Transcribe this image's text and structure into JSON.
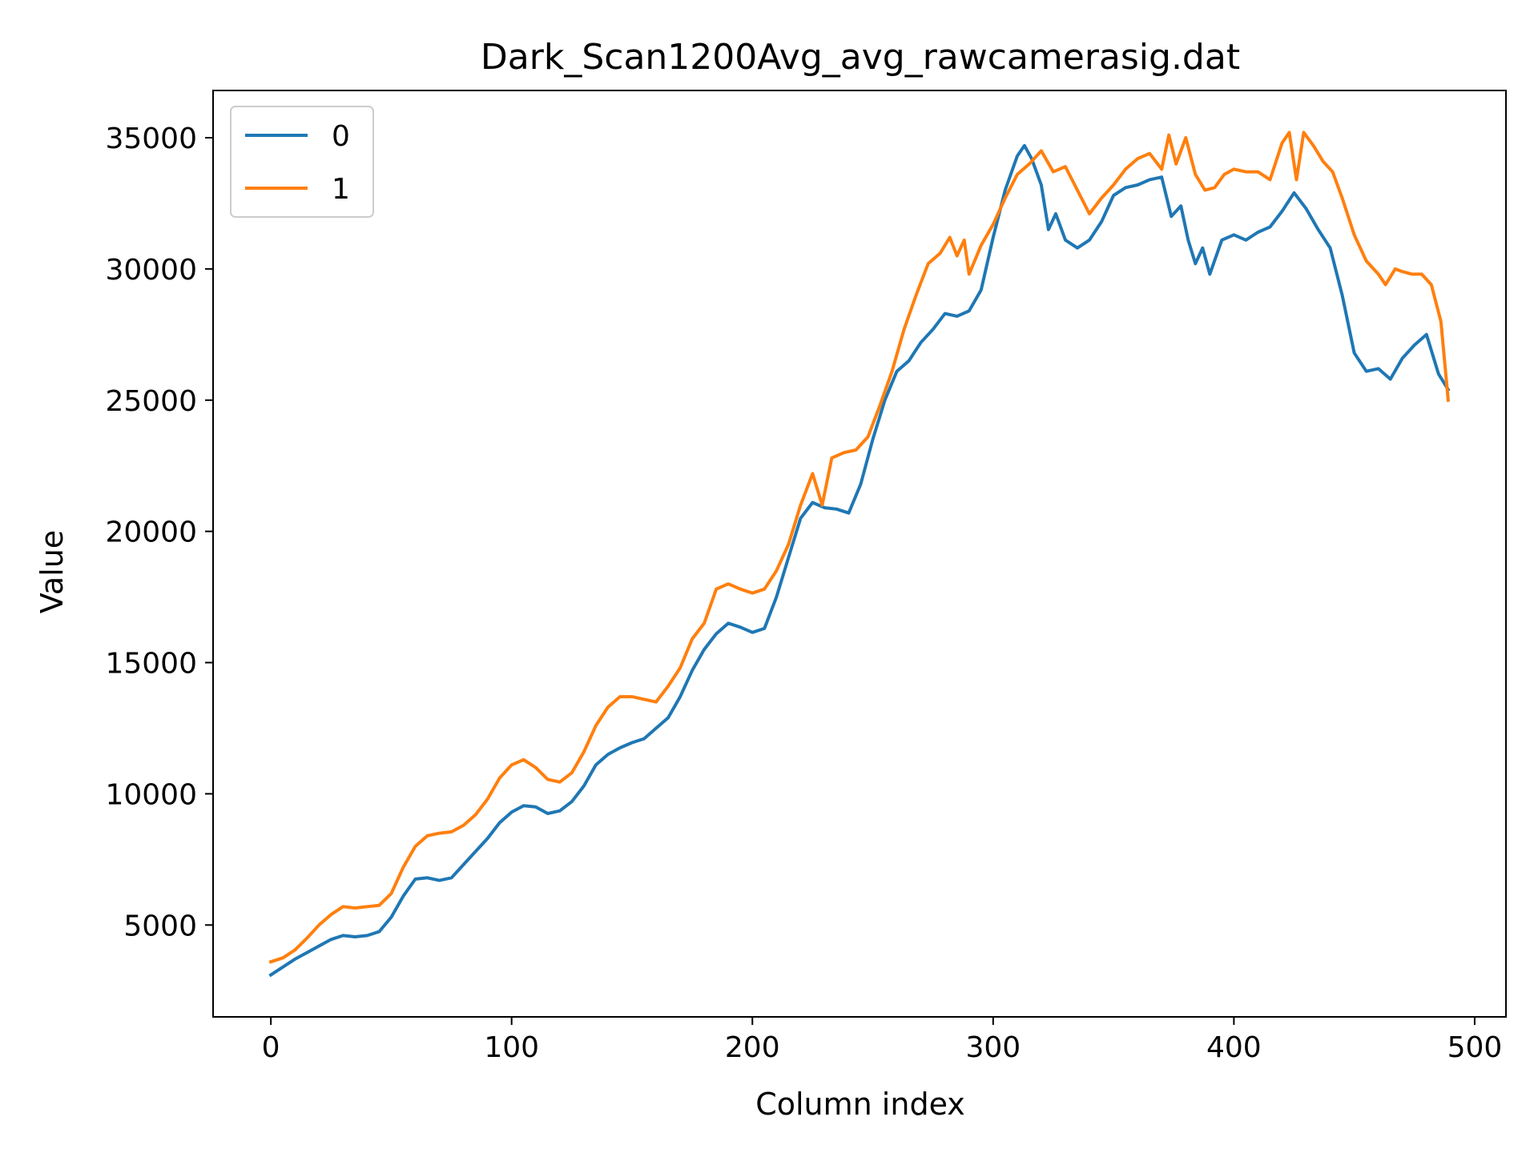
{
  "chart_data": {
    "type": "line",
    "title": "Dark_Scan1200Avg_avg_rawcamerasig.dat",
    "xlabel": "Column index",
    "ylabel": "Value",
    "xlim": [
      -24,
      513
    ],
    "ylim": [
      1500,
      36800
    ],
    "xticks": [
      0,
      100,
      200,
      300,
      400,
      500
    ],
    "yticks": [
      5000,
      10000,
      15000,
      20000,
      25000,
      30000,
      35000
    ],
    "grid": false,
    "legend_position": "top-left",
    "series": [
      {
        "name": "0",
        "color": "#1f77b4",
        "points": [
          [
            0,
            3100
          ],
          [
            5,
            3400
          ],
          [
            10,
            3700
          ],
          [
            15,
            3950
          ],
          [
            20,
            4200
          ],
          [
            25,
            4450
          ],
          [
            30,
            4600
          ],
          [
            35,
            4550
          ],
          [
            40,
            4600
          ],
          [
            45,
            4750
          ],
          [
            50,
            5300
          ],
          [
            55,
            6100
          ],
          [
            60,
            6750
          ],
          [
            65,
            6800
          ],
          [
            70,
            6700
          ],
          [
            75,
            6800
          ],
          [
            80,
            7300
          ],
          [
            85,
            7800
          ],
          [
            90,
            8300
          ],
          [
            95,
            8900
          ],
          [
            100,
            9300
          ],
          [
            105,
            9550
          ],
          [
            110,
            9500
          ],
          [
            115,
            9250
          ],
          [
            120,
            9350
          ],
          [
            125,
            9700
          ],
          [
            130,
            10300
          ],
          [
            135,
            11100
          ],
          [
            140,
            11500
          ],
          [
            145,
            11750
          ],
          [
            150,
            11950
          ],
          [
            155,
            12100
          ],
          [
            160,
            12500
          ],
          [
            165,
            12900
          ],
          [
            170,
            13700
          ],
          [
            175,
            14700
          ],
          [
            180,
            15500
          ],
          [
            185,
            16100
          ],
          [
            190,
            16500
          ],
          [
            195,
            16350
          ],
          [
            200,
            16150
          ],
          [
            205,
            16300
          ],
          [
            210,
            17500
          ],
          [
            215,
            19000
          ],
          [
            220,
            20500
          ],
          [
            225,
            21100
          ],
          [
            230,
            20900
          ],
          [
            235,
            20850
          ],
          [
            240,
            20700
          ],
          [
            245,
            21800
          ],
          [
            250,
            23500
          ],
          [
            255,
            25000
          ],
          [
            260,
            26100
          ],
          [
            265,
            26500
          ],
          [
            270,
            27200
          ],
          [
            275,
            27700
          ],
          [
            280,
            28300
          ],
          [
            285,
            28200
          ],
          [
            290,
            28400
          ],
          [
            295,
            29200
          ],
          [
            300,
            31200
          ],
          [
            305,
            33000
          ],
          [
            310,
            34300
          ],
          [
            313,
            34700
          ],
          [
            316,
            34200
          ],
          [
            320,
            33200
          ],
          [
            323,
            31500
          ],
          [
            326,
            32100
          ],
          [
            330,
            31100
          ],
          [
            335,
            30800
          ],
          [
            340,
            31100
          ],
          [
            345,
            31800
          ],
          [
            350,
            32800
          ],
          [
            355,
            33100
          ],
          [
            360,
            33200
          ],
          [
            365,
            33400
          ],
          [
            370,
            33500
          ],
          [
            374,
            32000
          ],
          [
            378,
            32400
          ],
          [
            381,
            31100
          ],
          [
            384,
            30200
          ],
          [
            387,
            30800
          ],
          [
            390,
            29800
          ],
          [
            395,
            31100
          ],
          [
            400,
            31300
          ],
          [
            405,
            31100
          ],
          [
            410,
            31400
          ],
          [
            415,
            31600
          ],
          [
            420,
            32200
          ],
          [
            425,
            32900
          ],
          [
            430,
            32300
          ],
          [
            435,
            31500
          ],
          [
            440,
            30800
          ],
          [
            445,
            29000
          ],
          [
            450,
            26800
          ],
          [
            455,
            26100
          ],
          [
            460,
            26200
          ],
          [
            465,
            25800
          ],
          [
            470,
            26600
          ],
          [
            475,
            27100
          ],
          [
            480,
            27500
          ],
          [
            485,
            26000
          ],
          [
            489,
            25400
          ]
        ]
      },
      {
        "name": "1",
        "color": "#ff7f0e",
        "points": [
          [
            0,
            3600
          ],
          [
            5,
            3750
          ],
          [
            10,
            4050
          ],
          [
            15,
            4500
          ],
          [
            20,
            5000
          ],
          [
            25,
            5400
          ],
          [
            30,
            5700
          ],
          [
            35,
            5650
          ],
          [
            40,
            5700
          ],
          [
            45,
            5750
          ],
          [
            50,
            6200
          ],
          [
            55,
            7200
          ],
          [
            60,
            8000
          ],
          [
            65,
            8400
          ],
          [
            70,
            8500
          ],
          [
            75,
            8550
          ],
          [
            80,
            8800
          ],
          [
            85,
            9200
          ],
          [
            90,
            9800
          ],
          [
            95,
            10600
          ],
          [
            100,
            11100
          ],
          [
            105,
            11300
          ],
          [
            110,
            11000
          ],
          [
            115,
            10550
          ],
          [
            120,
            10450
          ],
          [
            125,
            10800
          ],
          [
            130,
            11600
          ],
          [
            135,
            12600
          ],
          [
            140,
            13300
          ],
          [
            145,
            13700
          ],
          [
            150,
            13700
          ],
          [
            155,
            13600
          ],
          [
            160,
            13500
          ],
          [
            165,
            14100
          ],
          [
            170,
            14800
          ],
          [
            175,
            15900
          ],
          [
            180,
            16500
          ],
          [
            185,
            17800
          ],
          [
            190,
            18000
          ],
          [
            195,
            17800
          ],
          [
            200,
            17650
          ],
          [
            205,
            17800
          ],
          [
            210,
            18500
          ],
          [
            215,
            19500
          ],
          [
            220,
            21000
          ],
          [
            225,
            22200
          ],
          [
            229,
            21000
          ],
          [
            233,
            22800
          ],
          [
            238,
            23000
          ],
          [
            243,
            23100
          ],
          [
            248,
            23600
          ],
          [
            253,
            24800
          ],
          [
            258,
            26100
          ],
          [
            263,
            27700
          ],
          [
            268,
            29000
          ],
          [
            273,
            30200
          ],
          [
            278,
            30600
          ],
          [
            282,
            31200
          ],
          [
            285,
            30500
          ],
          [
            288,
            31100
          ],
          [
            290,
            29800
          ],
          [
            295,
            30900
          ],
          [
            300,
            31700
          ],
          [
            305,
            32700
          ],
          [
            310,
            33600
          ],
          [
            315,
            34000
          ],
          [
            320,
            34500
          ],
          [
            325,
            33700
          ],
          [
            330,
            33900
          ],
          [
            335,
            33000
          ],
          [
            340,
            32100
          ],
          [
            345,
            32700
          ],
          [
            350,
            33200
          ],
          [
            355,
            33800
          ],
          [
            360,
            34200
          ],
          [
            365,
            34400
          ],
          [
            370,
            33800
          ],
          [
            373,
            35100
          ],
          [
            376,
            34000
          ],
          [
            380,
            35000
          ],
          [
            384,
            33600
          ],
          [
            388,
            33000
          ],
          [
            392,
            33100
          ],
          [
            396,
            33600
          ],
          [
            400,
            33800
          ],
          [
            405,
            33700
          ],
          [
            410,
            33700
          ],
          [
            415,
            33400
          ],
          [
            420,
            34800
          ],
          [
            423,
            35200
          ],
          [
            426,
            33400
          ],
          [
            429,
            35200
          ],
          [
            433,
            34700
          ],
          [
            437,
            34100
          ],
          [
            441,
            33700
          ],
          [
            445,
            32700
          ],
          [
            450,
            31300
          ],
          [
            455,
            30300
          ],
          [
            460,
            29800
          ],
          [
            463,
            29400
          ],
          [
            467,
            30000
          ],
          [
            470,
            29900
          ],
          [
            474,
            29800
          ],
          [
            478,
            29800
          ],
          [
            482,
            29400
          ],
          [
            486,
            28000
          ],
          [
            489,
            25000
          ]
        ]
      }
    ]
  }
}
